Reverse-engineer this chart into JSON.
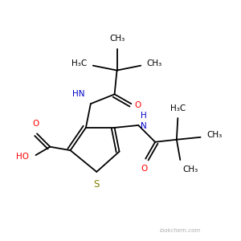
{
  "background_color": "#ffffff",
  "bond_color": "#000000",
  "sulfur_color": "#808000",
  "nitrogen_color": "#0000cd",
  "oxygen_color": "#ff0000",
  "font_size": 7.5,
  "watermark": "lookchem.com",
  "xlim": [
    0.0,
    1.0
  ],
  "ylim": [
    0.0,
    1.0
  ]
}
